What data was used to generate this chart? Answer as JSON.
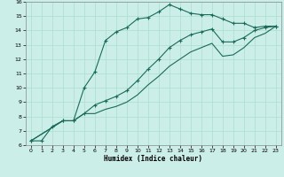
{
  "xlabel": "Humidex (Indice chaleur)",
  "ylabel": "",
  "bg_color": "#cceee8",
  "grid_color": "#aaddcc",
  "line_color": "#1a6b5a",
  "xlim": [
    -0.5,
    23.5
  ],
  "ylim": [
    6,
    16
  ],
  "xticks": [
    0,
    1,
    2,
    3,
    4,
    5,
    6,
    7,
    8,
    9,
    10,
    11,
    12,
    13,
    14,
    15,
    16,
    17,
    18,
    19,
    20,
    21,
    22,
    23
  ],
  "yticks": [
    6,
    7,
    8,
    9,
    10,
    11,
    12,
    13,
    14,
    15,
    16
  ],
  "line1_x": [
    0,
    1,
    2,
    3,
    4,
    5,
    6,
    7,
    8,
    9,
    10,
    11,
    12,
    13,
    14,
    15,
    16,
    17,
    18,
    19,
    20,
    21,
    22,
    23
  ],
  "line1_y": [
    6.3,
    6.3,
    7.3,
    7.7,
    7.7,
    10.0,
    11.1,
    13.3,
    13.9,
    14.2,
    14.8,
    14.9,
    15.3,
    15.8,
    15.5,
    15.2,
    15.1,
    15.1,
    14.8,
    14.5,
    14.5,
    14.2,
    14.3,
    14.3
  ],
  "line2_x": [
    0,
    3,
    4,
    5,
    6,
    7,
    8,
    9,
    10,
    11,
    12,
    13,
    14,
    15,
    16,
    17,
    18,
    19,
    20,
    21,
    22,
    23
  ],
  "line2_y": [
    6.3,
    7.7,
    7.7,
    8.2,
    8.8,
    9.1,
    9.4,
    9.8,
    10.5,
    11.3,
    12.0,
    12.8,
    13.3,
    13.7,
    13.9,
    14.1,
    13.2,
    13.2,
    13.5,
    14.0,
    14.2,
    14.3
  ],
  "line3_x": [
    0,
    3,
    4,
    5,
    6,
    7,
    8,
    9,
    10,
    11,
    12,
    13,
    14,
    15,
    16,
    17,
    18,
    19,
    20,
    21,
    22,
    23
  ],
  "line3_y": [
    6.3,
    7.7,
    7.7,
    8.2,
    8.2,
    8.5,
    8.7,
    9.0,
    9.5,
    10.2,
    10.8,
    11.5,
    12.0,
    12.5,
    12.8,
    13.1,
    12.2,
    12.3,
    12.8,
    13.5,
    13.8,
    14.3
  ]
}
